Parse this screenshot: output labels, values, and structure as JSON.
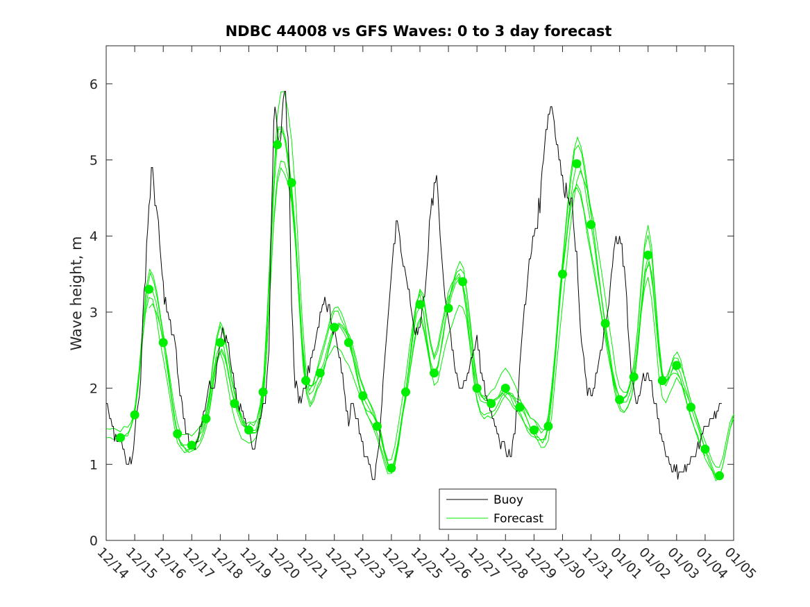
{
  "chart_data": {
    "type": "line",
    "title": "NDBC 44008 vs GFS Waves: 0 to 3 day forecast",
    "xlabel": "",
    "ylabel": "Wave height, m",
    "ylim": [
      0,
      6.5
    ],
    "yticks": [
      0,
      1,
      2,
      3,
      4,
      5,
      6
    ],
    "xlim": [
      0,
      22
    ],
    "xtick_labels": [
      "12/14",
      "12/15",
      "12/16",
      "12/17",
      "12/18",
      "12/19",
      "12/20",
      "12/21",
      "12/22",
      "12/23",
      "12/24",
      "12/25",
      "12/26",
      "12/27",
      "12/28",
      "12/29",
      "12/30",
      "12/31",
      "01/01",
      "01/02",
      "01/03",
      "01/04",
      "01/05"
    ],
    "legend": {
      "position": "bottom-center",
      "entries": [
        "Buoy",
        "Forecast"
      ]
    },
    "colors": {
      "buoy": "#000000",
      "forecast": "#00ee00",
      "axes": "#262626"
    },
    "series": [
      {
        "name": "Buoy",
        "x": [
          0,
          0.1,
          0.2,
          0.3,
          0.5,
          0.6,
          0.8,
          0.9,
          1.0,
          1.2,
          1.3,
          1.45,
          1.6,
          1.8,
          2.0,
          2.2,
          2.4,
          2.6,
          2.8,
          3.0,
          3.2,
          3.4,
          3.6,
          3.8,
          4.0,
          4.2,
          4.4,
          4.6,
          4.8,
          5.0,
          5.2,
          5.4,
          5.6,
          5.7,
          5.8,
          5.9,
          6.0,
          6.1,
          6.2,
          6.3,
          6.4,
          6.5,
          6.6,
          6.8,
          7.0,
          7.2,
          7.4,
          7.6,
          7.8,
          8.0,
          8.2,
          8.4,
          8.5,
          8.6,
          8.8,
          9.0,
          9.2,
          9.4,
          9.6,
          9.8,
          10.0,
          10.2,
          10.4,
          10.6,
          10.8,
          11.0,
          11.2,
          11.4,
          11.6,
          11.8,
          12.0,
          12.2,
          12.4,
          12.6,
          12.8,
          13.0,
          13.2,
          13.4,
          13.6,
          13.8,
          14.0,
          14.2,
          14.4,
          14.6,
          14.8,
          15.0,
          15.2,
          15.4,
          15.6,
          15.8,
          16.0,
          16.2,
          16.4,
          16.5,
          16.6,
          16.7,
          16.8,
          16.9,
          17.0,
          17.2,
          17.4,
          17.6,
          17.8,
          18.0,
          18.2,
          18.4,
          18.6,
          18.8,
          19.0,
          19.2,
          19.4,
          19.6,
          19.8,
          20.0,
          20.2,
          20.4,
          20.6,
          20.8,
          21.0,
          21.2,
          21.4,
          21.6
        ],
        "values": [
          1.8,
          1.65,
          1.6,
          1.3,
          1.3,
          1.2,
          1.0,
          1.1,
          1.4,
          2.1,
          3.0,
          4.1,
          4.9,
          4.2,
          3.3,
          2.9,
          2.6,
          1.9,
          1.4,
          1.2,
          1.3,
          1.6,
          2.0,
          2.0,
          2.7,
          2.7,
          2.3,
          1.8,
          1.7,
          1.4,
          1.2,
          1.6,
          1.9,
          2.4,
          4.5,
          5.9,
          5.5,
          5.0,
          5.7,
          5.8,
          5.1,
          3.2,
          2.1,
          1.8,
          2.1,
          2.4,
          2.7,
          3.2,
          3.1,
          2.7,
          2.4,
          1.8,
          1.6,
          1.8,
          1.6,
          1.2,
          1.0,
          0.8,
          1.4,
          2.6,
          3.5,
          4.3,
          3.6,
          3.3,
          2.8,
          2.8,
          3.4,
          4.4,
          4.8,
          3.5,
          2.9,
          2.3,
          2.0,
          2.1,
          2.4,
          2.6,
          2.1,
          1.8,
          1.6,
          1.3,
          1.2,
          1.1,
          1.7,
          2.8,
          3.5,
          4.0,
          4.4,
          5.4,
          5.8,
          5.3,
          4.7,
          4.6,
          4.2,
          3.7,
          2.9,
          2.5,
          2.2,
          1.9,
          1.9,
          2.2,
          2.6,
          3.0,
          3.8,
          4.1,
          3.4,
          2.2,
          1.8,
          2.1,
          2.2,
          1.9,
          1.5,
          1.2,
          1.0,
          0.9,
          0.9,
          1.0,
          1.1,
          1.3,
          1.5,
          1.6,
          1.7,
          1.8
        ]
      },
      {
        "name": "Forecast",
        "x": [
          0.5,
          1.0,
          1.5,
          2.0,
          2.5,
          3.0,
          3.5,
          4.0,
          4.5,
          5.0,
          5.5,
          6.0,
          6.5,
          7.0,
          7.5,
          8.0,
          8.5,
          9.0,
          9.5,
          10.0,
          10.5,
          11.0,
          11.5,
          12.0,
          12.5,
          13.0,
          13.5,
          14.0,
          14.5,
          15.0,
          15.5,
          16.0,
          16.5,
          17.0,
          17.5,
          18.0,
          18.5,
          19.0,
          19.5,
          20.0,
          20.5,
          21.0,
          21.5,
          22.0
        ],
        "values": [
          1.35,
          1.65,
          3.3,
          2.6,
          1.4,
          1.25,
          1.6,
          2.6,
          1.8,
          1.45,
          1.95,
          5.2,
          4.7,
          2.1,
          2.2,
          2.8,
          2.6,
          1.9,
          1.5,
          0.95,
          1.95,
          3.1,
          2.2,
          3.05,
          3.4,
          2.0,
          1.8,
          2.0,
          1.75,
          1.45,
          1.5,
          3.5,
          4.95,
          4.15,
          2.85,
          1.85,
          2.15,
          3.75,
          2.1,
          2.3,
          1.75,
          1.2,
          0.85,
          1.6
        ]
      }
    ]
  }
}
